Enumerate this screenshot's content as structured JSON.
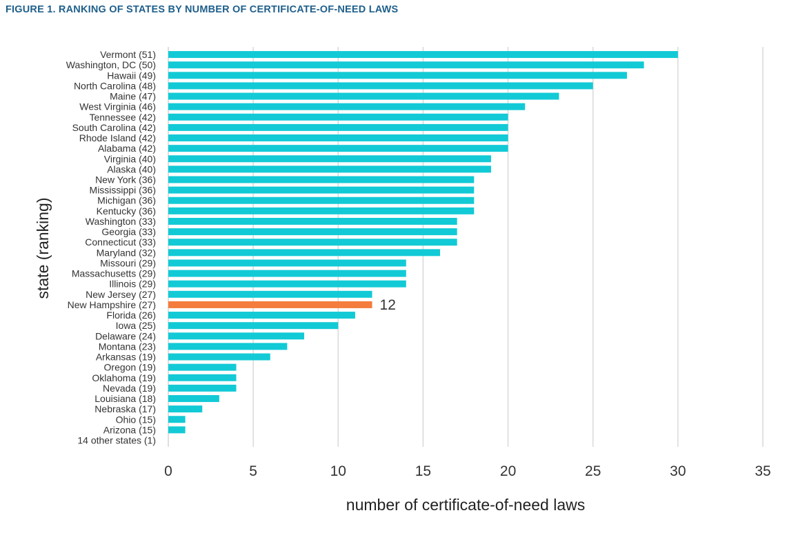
{
  "figure": {
    "title": "FIGURE 1. RANKING OF STATES BY NUMBER OF CERTIFICATE-OF-NEED LAWS"
  },
  "chart_data": {
    "type": "bar",
    "orientation": "horizontal",
    "xlabel": "number of certificate-of-need laws",
    "ylabel": "state (ranking)",
    "xlim": [
      0,
      35
    ],
    "xticks": [
      0,
      5,
      10,
      15,
      20,
      25,
      30,
      35
    ],
    "grid": "vertical gridlines",
    "categories": [
      "Vermont (51)",
      "Washington, DC (50)",
      "Hawaii (49)",
      "North Carolina (48)",
      "Maine (47)",
      "West Virginia (46)",
      "Tennessee (42)",
      "South Carolina (42)",
      "Rhode Island (42)",
      "Alabama (42)",
      "Virginia (40)",
      "Alaska (40)",
      "New York (36)",
      "Mississippi (36)",
      "Michigan (36)",
      "Kentucky (36)",
      "Washington (33)",
      "Georgia (33)",
      "Connecticut (33)",
      "Maryland (32)",
      "Missouri (29)",
      "Massachusetts (29)",
      "Illinois (29)",
      "New Jersey (27)",
      "New Hampshire (27)",
      "Florida (26)",
      "Iowa (25)",
      "Delaware (24)",
      "Montana (23)",
      "Arkansas (19)",
      "Oregon (19)",
      "Oklahoma (19)",
      "Nevada (19)",
      "Louisiana (18)",
      "Nebraska (17)",
      "Ohio (15)",
      "Arizona (15)",
      "14 other states (1)"
    ],
    "values": [
      30,
      28,
      27,
      25,
      23,
      21,
      20,
      20,
      20,
      20,
      19,
      19,
      18,
      18,
      18,
      18,
      17,
      17,
      17,
      16,
      14,
      14,
      14,
      12,
      12,
      11,
      10,
      8,
      7,
      6,
      4,
      4,
      4,
      3,
      2,
      1,
      1,
      0
    ],
    "highlight_index": 24,
    "highlight_label": "12",
    "colors": {
      "bar": "#12cad6",
      "highlight": "#f47c3c",
      "grid": "#d9d9d9",
      "title": "#1f5f8b"
    }
  }
}
